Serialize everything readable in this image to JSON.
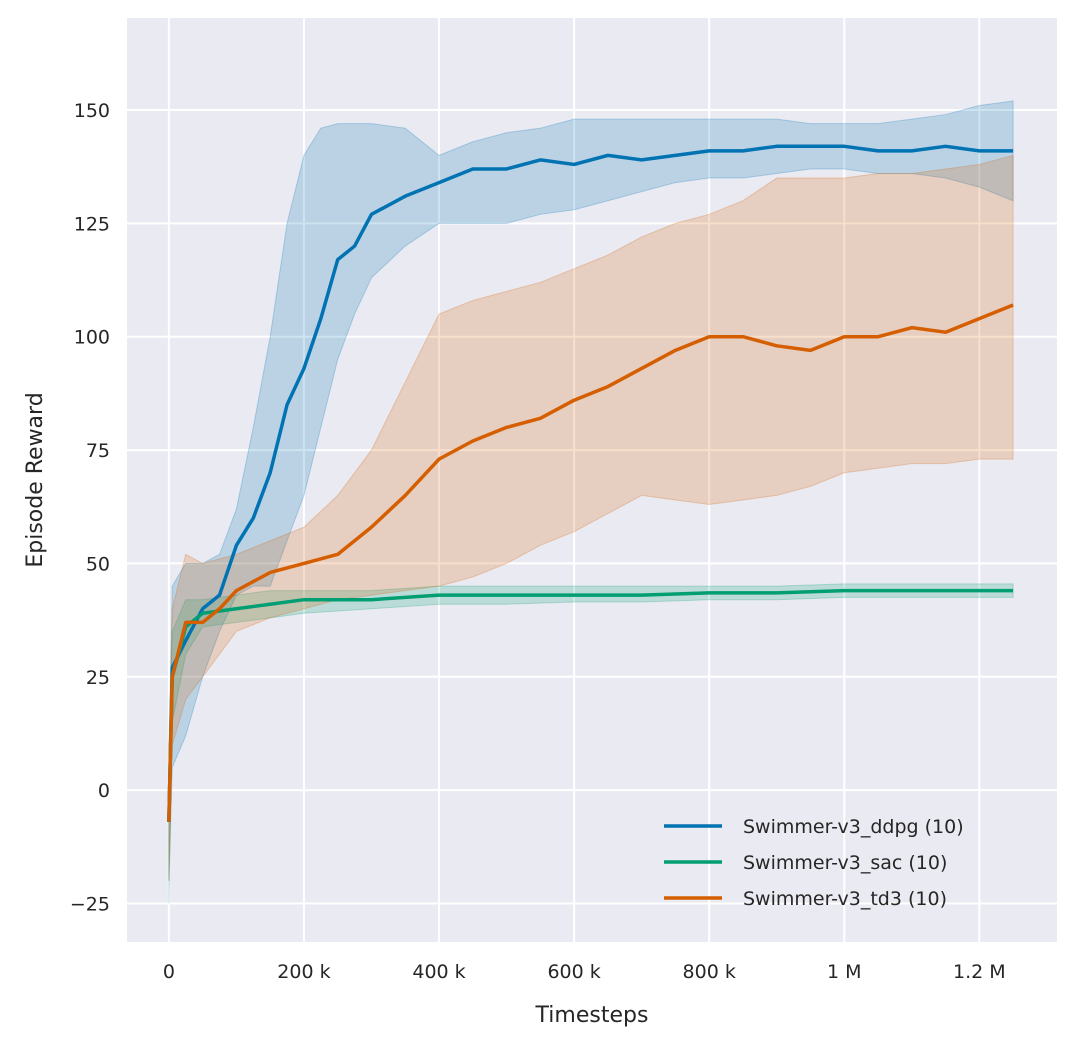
{
  "chart_data": {
    "type": "line",
    "title": "",
    "xlabel": "Timesteps",
    "ylabel": "Episode Reward",
    "xlim": [
      -62000,
      1315000
    ],
    "ylim": [
      -33.5,
      170.3
    ],
    "xticks": [
      0,
      200000,
      400000,
      600000,
      800000,
      1000000,
      1200000
    ],
    "xtick_labels": [
      "0",
      "200 k",
      "400 k",
      "600 k",
      "800 k",
      "1 M",
      "1.2 M"
    ],
    "yticks": [
      -25,
      0,
      25,
      50,
      75,
      100,
      125,
      150
    ],
    "ytick_labels": [
      "−25",
      "0",
      "25",
      "50",
      "75",
      "100",
      "125",
      "150"
    ],
    "grid": true,
    "background": "#eaeaf2",
    "legend_position": "bottom-right",
    "series": [
      {
        "name": "Swimmer-v3_ddpg (10)",
        "color": "#0173b2",
        "x": [
          0,
          5000,
          25000,
          50000,
          75000,
          100000,
          125000,
          150000,
          175000,
          200000,
          225000,
          250000,
          275000,
          300000,
          350000,
          400000,
          450000,
          500000,
          550000,
          600000,
          650000,
          700000,
          750000,
          800000,
          850000,
          900000,
          950000,
          1000000,
          1050000,
          1100000,
          1150000,
          1200000,
          1250000
        ],
        "y": [
          -7,
          27,
          33,
          40,
          43,
          54,
          60,
          70,
          85,
          93,
          104,
          117,
          120,
          127,
          131,
          134,
          137,
          137,
          139,
          138,
          140,
          139,
          140,
          141,
          141,
          142,
          142,
          142,
          141,
          141,
          142,
          141,
          141
        ],
        "lower": [
          -20,
          5,
          12,
          25,
          35,
          43,
          45,
          45,
          55,
          65,
          80,
          95,
          105,
          113,
          120,
          125,
          125,
          125,
          127,
          128,
          130,
          132,
          134,
          135,
          135,
          136,
          137,
          137,
          136,
          136,
          135,
          133,
          130
        ],
        "upper": [
          5,
          45,
          50,
          50,
          52,
          62,
          80,
          100,
          125,
          140,
          146,
          147,
          147,
          147,
          146,
          140,
          143,
          145,
          146,
          148,
          148,
          148,
          148,
          148,
          148,
          148,
          147,
          147,
          147,
          148,
          149,
          151,
          152
        ]
      },
      {
        "name": "Swimmer-v3_sac (10)",
        "color": "#029e73",
        "x": [
          0,
          5000,
          25000,
          50000,
          100000,
          150000,
          200000,
          300000,
          400000,
          500000,
          600000,
          700000,
          800000,
          900000,
          1000000,
          1100000,
          1200000,
          1250000
        ],
        "y": [
          -7,
          25,
          36,
          39,
          40,
          41,
          42,
          42,
          43,
          43,
          43,
          43,
          43.5,
          43.5,
          44,
          44,
          44,
          44
        ],
        "lower": [
          -25,
          15,
          30,
          36,
          37,
          38,
          39,
          40,
          41,
          41,
          41.5,
          41.5,
          42,
          42,
          42.5,
          42.5,
          42.5,
          42.5
        ],
        "upper": [
          10,
          35,
          42,
          42,
          43,
          44,
          44,
          44,
          45,
          45,
          45,
          45,
          45,
          45,
          45.5,
          45.5,
          45.5,
          45.5
        ]
      },
      {
        "name": "Swimmer-v3_td3 (10)",
        "color": "#d55e00",
        "x": [
          0,
          5000,
          25000,
          50000,
          75000,
          100000,
          150000,
          200000,
          250000,
          300000,
          350000,
          400000,
          450000,
          500000,
          550000,
          600000,
          650000,
          700000,
          750000,
          800000,
          850000,
          900000,
          950000,
          1000000,
          1050000,
          1100000,
          1150000,
          1200000,
          1250000
        ],
        "y": [
          -7,
          25,
          37,
          37,
          40,
          44,
          48,
          50,
          52,
          58,
          65,
          73,
          77,
          80,
          82,
          86,
          89,
          93,
          97,
          100,
          100,
          98,
          97,
          100,
          100,
          102,
          101,
          104,
          107
        ],
        "lower": [
          -20,
          10,
          20,
          25,
          30,
          35,
          38,
          40,
          42,
          43,
          44,
          45,
          47,
          50,
          54,
          57,
          61,
          65,
          64,
          63,
          64,
          65,
          67,
          70,
          71,
          72,
          72,
          73,
          73
        ],
        "upper": [
          5,
          40,
          52,
          50,
          51,
          52,
          55,
          58,
          65,
          75,
          90,
          105,
          108,
          110,
          112,
          115,
          118,
          122,
          125,
          127,
          130,
          135,
          135,
          135,
          136,
          136,
          137,
          138,
          140
        ]
      }
    ]
  }
}
